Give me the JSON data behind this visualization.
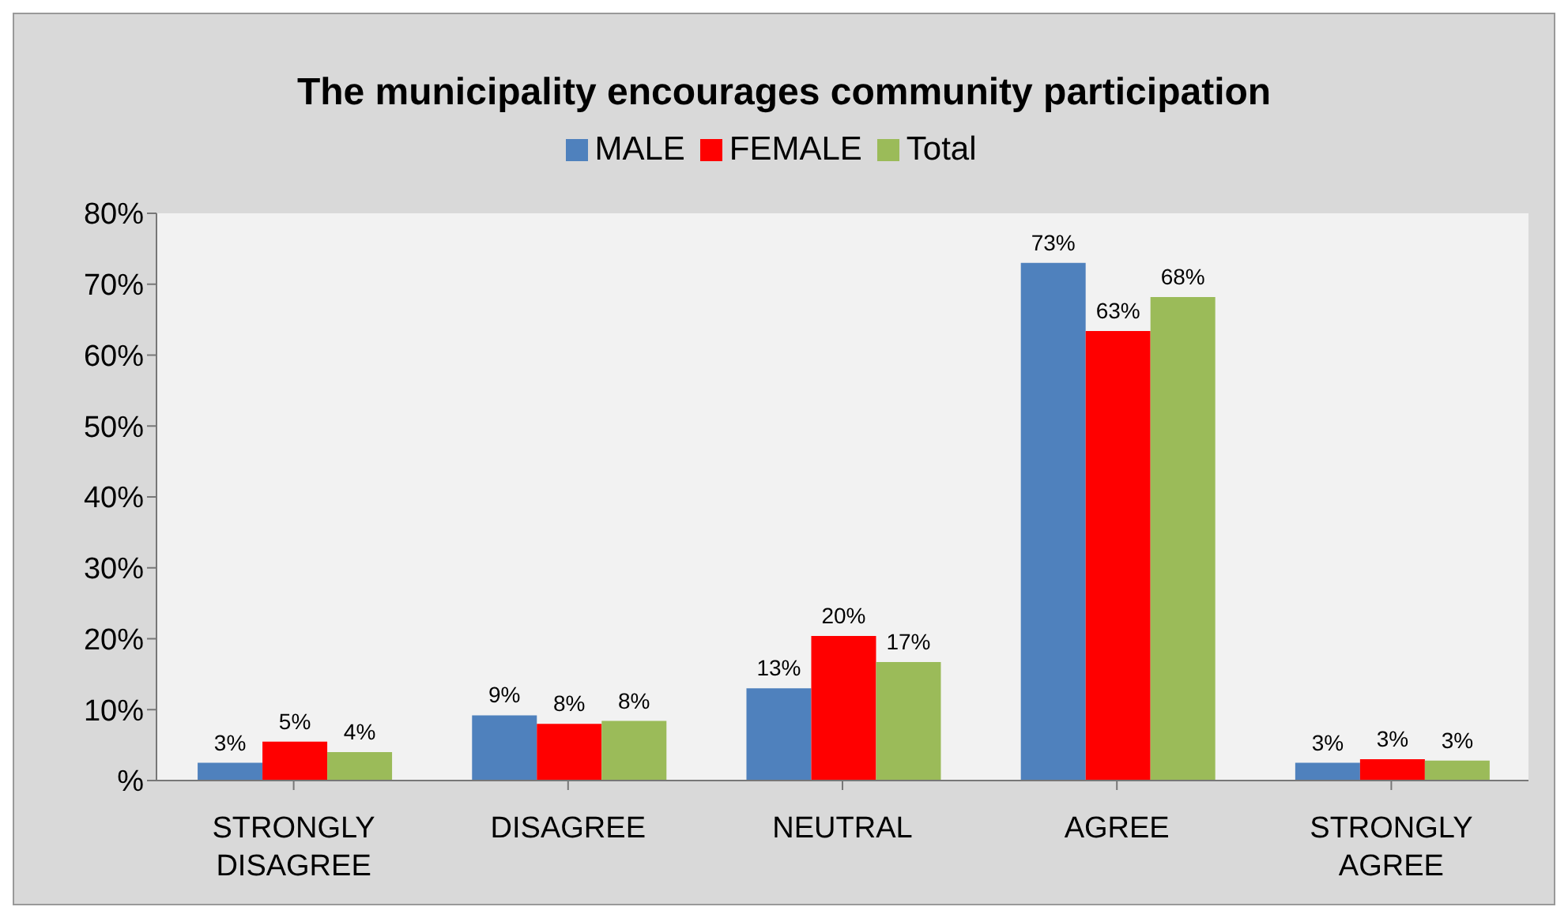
{
  "chart_data": {
    "type": "bar",
    "title": "The municipality encourages community participation",
    "categories": [
      "STRONGLY DISAGREE",
      "DISAGREE",
      "NEUTRAL",
      "AGREE",
      "STRONGLY AGREE"
    ],
    "series": [
      {
        "name": "MALE",
        "color": "#4f81bd",
        "values": [
          2.5,
          9.2,
          13,
          73,
          2.5
        ],
        "value_labels": [
          "3%",
          "9%",
          "13%",
          "73%",
          "3%"
        ]
      },
      {
        "name": "FEMALE",
        "color": "#ff0000",
        "values": [
          5.5,
          8,
          20.4,
          63.4,
          3
        ],
        "value_labels": [
          "5%",
          "8%",
          "20%",
          "63%",
          "3%"
        ]
      },
      {
        "name": "Total",
        "color": "#9bbb59",
        "values": [
          4,
          8.4,
          16.7,
          68.2,
          2.8
        ],
        "value_labels": [
          "4%",
          "8%",
          "17%",
          "68%",
          "3%"
        ]
      }
    ],
    "ylim": [
      0,
      80
    ],
    "yticks": [
      {
        "value": 0,
        "label": "%"
      },
      {
        "value": 10,
        "label": "10%"
      },
      {
        "value": 20,
        "label": "20%"
      },
      {
        "value": 30,
        "label": "30%"
      },
      {
        "value": 40,
        "label": "40%"
      },
      {
        "value": 50,
        "label": "50%"
      },
      {
        "value": 60,
        "label": "60%"
      },
      {
        "value": 70,
        "label": "70%"
      },
      {
        "value": 80,
        "label": "80%"
      }
    ],
    "grid": false,
    "legend": "top"
  }
}
